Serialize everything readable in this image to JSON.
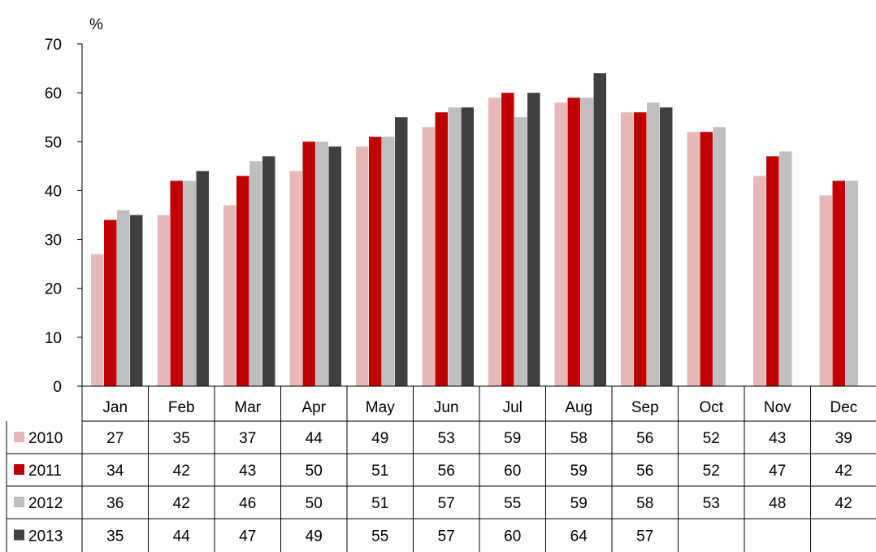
{
  "chart_data": {
    "type": "bar",
    "unit_label": "%",
    "categories": [
      "Jan",
      "Feb",
      "Mar",
      "Apr",
      "May",
      "Jun",
      "Jul",
      "Aug",
      "Sep",
      "Oct",
      "Nov",
      "Dec"
    ],
    "series": [
      {
        "name": "2010",
        "color": "#e6b9b8",
        "values": [
          27,
          35,
          37,
          44,
          49,
          53,
          59,
          58,
          56,
          52,
          43,
          39
        ]
      },
      {
        "name": "2011",
        "color": "#c00000",
        "values": [
          34,
          42,
          43,
          50,
          51,
          56,
          60,
          59,
          56,
          52,
          47,
          42
        ]
      },
      {
        "name": "2012",
        "color": "#bfbfbf",
        "values": [
          36,
          42,
          46,
          50,
          51,
          57,
          55,
          59,
          58,
          53,
          48,
          42
        ]
      },
      {
        "name": "2013",
        "color": "#404040",
        "values": [
          35,
          44,
          47,
          49,
          55,
          57,
          60,
          64,
          57,
          null,
          null,
          null
        ]
      }
    ],
    "ylim": [
      0,
      70
    ],
    "yticks": [
      0,
      10,
      20,
      30,
      40,
      50,
      60,
      70
    ],
    "grid": false,
    "legend": "data-table-left"
  }
}
